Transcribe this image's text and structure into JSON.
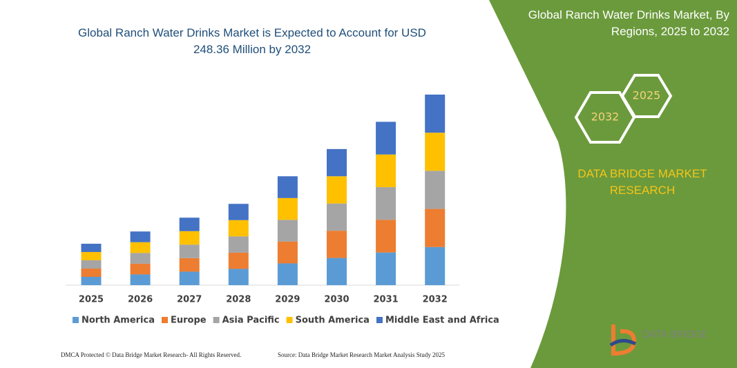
{
  "chart_data": {
    "type": "stacked_bar",
    "title": "Global Ranch Water Drinks Market is Expected to Account for USD 248.36 Million by 2032",
    "categories": [
      "2025",
      "2026",
      "2027",
      "2028",
      "2029",
      "2030",
      "2031",
      "2032"
    ],
    "series": [
      {
        "name": "North America",
        "color": "#5b9bd5",
        "values": [
          10.8,
          14.0,
          17.6,
          21.2,
          28.4,
          35.5,
          42.6,
          49.7
        ]
      },
      {
        "name": "Europe",
        "color": "#ed7d31",
        "values": [
          10.8,
          14.0,
          17.6,
          21.2,
          28.4,
          35.5,
          42.6,
          49.7
        ]
      },
      {
        "name": "Asia Pacific",
        "color": "#a5a5a5",
        "values": [
          10.8,
          14.0,
          17.6,
          21.2,
          28.4,
          35.5,
          42.6,
          49.7
        ]
      },
      {
        "name": "South America",
        "color": "#ffc000",
        "values": [
          10.8,
          14.0,
          17.6,
          21.2,
          28.4,
          35.5,
          42.6,
          49.7
        ]
      },
      {
        "name": "Middle East and Africa",
        "color": "#4472c4",
        "values": [
          10.8,
          14.0,
          17.6,
          21.2,
          28.4,
          35.5,
          42.6,
          49.7
        ]
      }
    ],
    "legend": "bottom"
  },
  "side_panel": {
    "title": "Global Ranch Water Drinks Market, By Regions, 2025 to 2032",
    "hexagons": [
      "2025",
      "2032"
    ],
    "brand": "DATA BRIDGE MARKET RESEARCH",
    "logo": "DATA BRIDGE"
  },
  "footer": {
    "left": "DMCA Protected © Data Bridge Market Research- All Rights Reserved.",
    "right": "Source: Data Bridge Market Research  Market Analysis Study 2025"
  }
}
